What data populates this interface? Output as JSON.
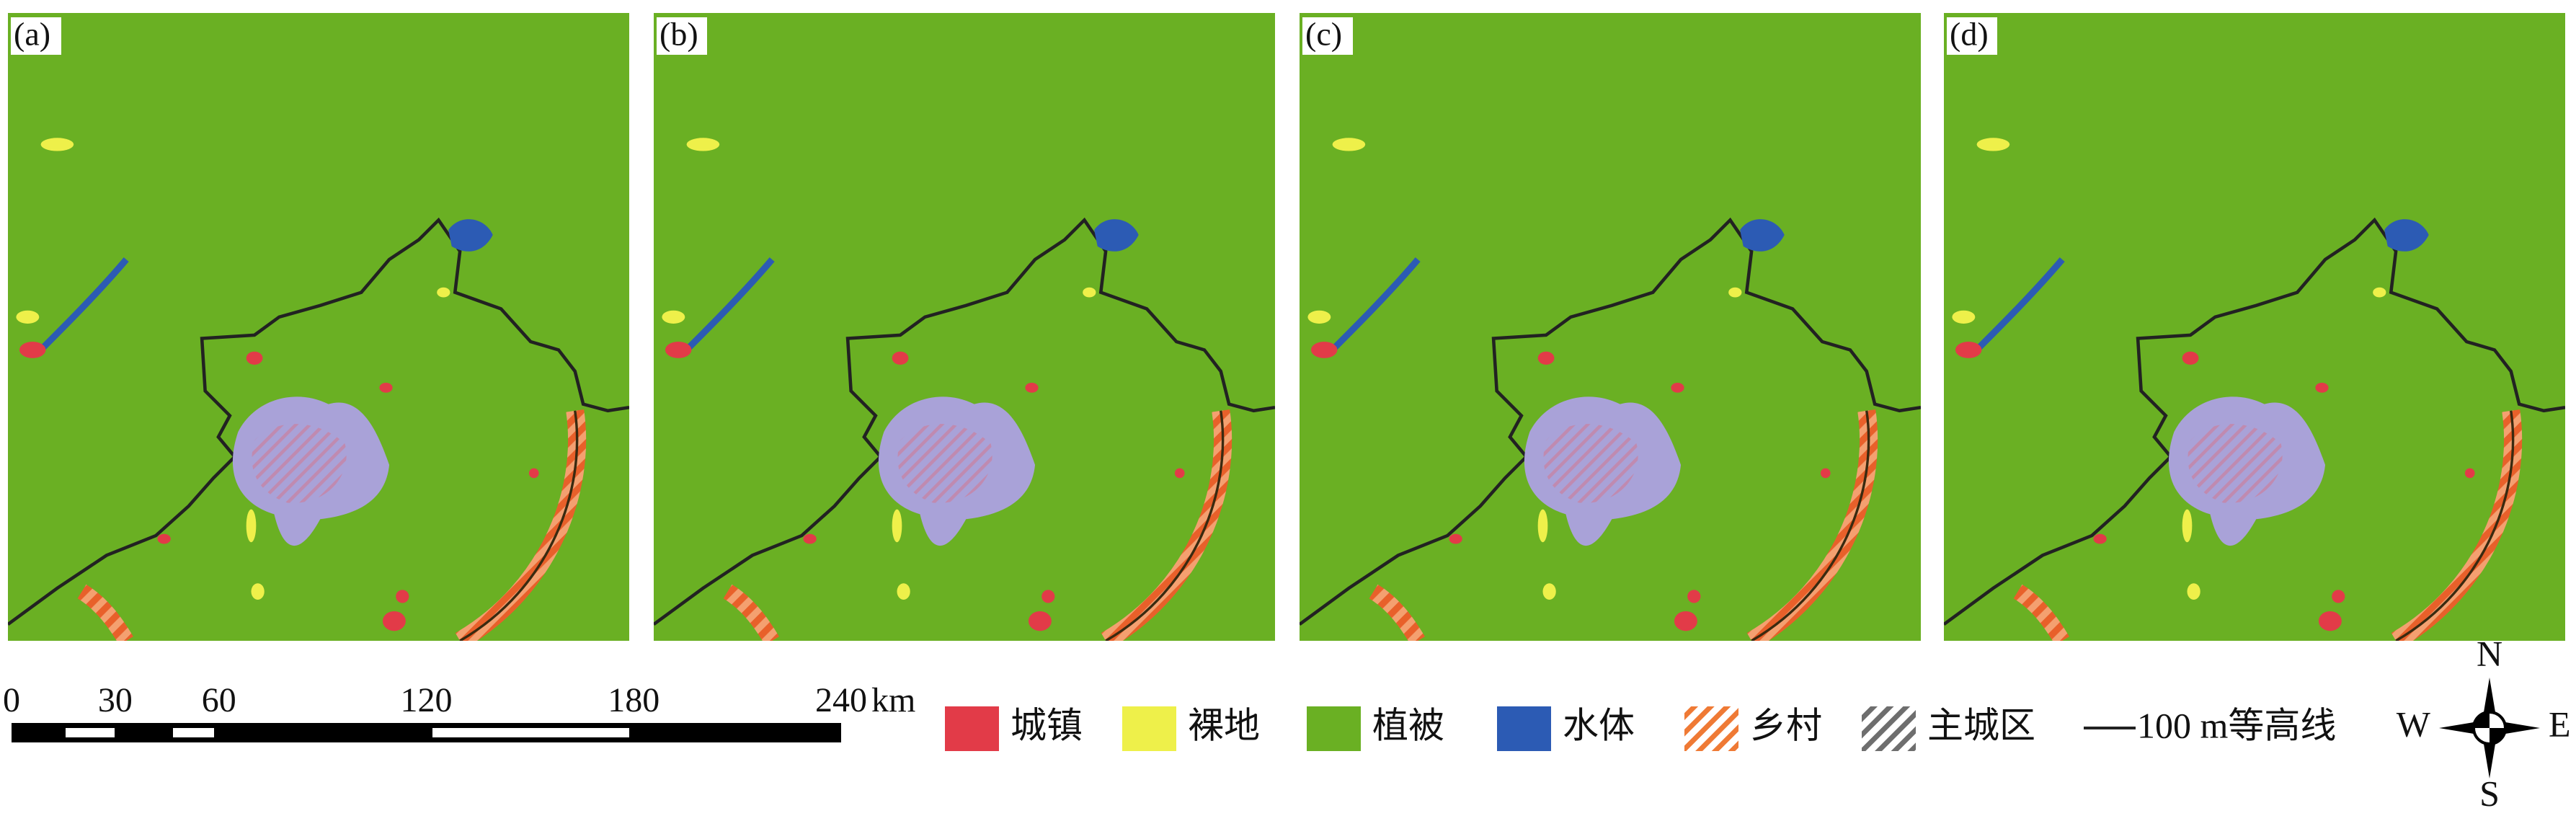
{
  "panels": [
    {
      "label": "(a)"
    },
    {
      "label": "(b)"
    },
    {
      "label": "(c)"
    },
    {
      "label": "(d)"
    }
  ],
  "scale_bar": {
    "ticks": [
      0,
      30,
      60,
      120,
      180,
      240
    ],
    "unit": "km"
  },
  "legend": [
    {
      "label": "城镇"
    },
    {
      "label": "裸地"
    },
    {
      "label": "植被"
    },
    {
      "label": "水体"
    },
    {
      "label": "乡村"
    },
    {
      "label": "主城区"
    },
    {
      "label": "100 m等高线"
    }
  ],
  "compass": {
    "n": "N",
    "s": "S",
    "w": "W",
    "e": "E"
  }
}
